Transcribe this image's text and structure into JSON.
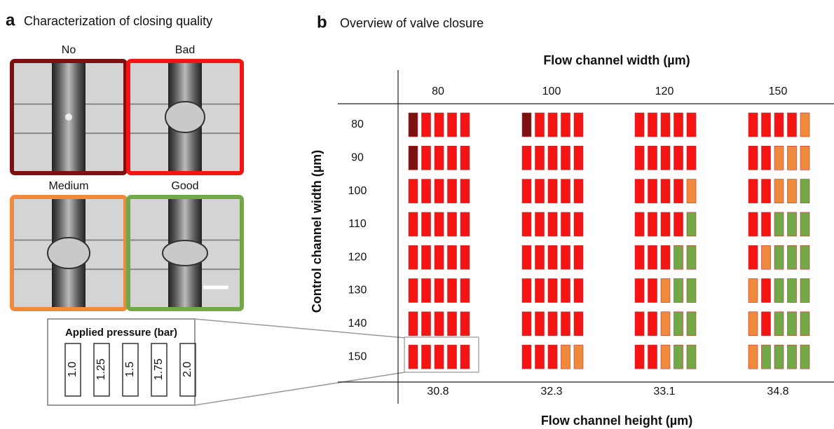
{
  "panel_a": {
    "label": "a",
    "title": "Characterization of closing quality",
    "qualities": [
      {
        "label": "No",
        "color": "#7d1111"
      },
      {
        "label": "Bad",
        "color": "#f41414"
      },
      {
        "label": "Medium",
        "color": "#ef8a3c"
      },
      {
        "label": "Good",
        "color": "#72a846"
      }
    ],
    "pressure_title": "Applied pressure (bar)",
    "pressures": [
      "1.0",
      "1.25",
      "1.5",
      "1.75",
      "2.0"
    ]
  },
  "panel_b": {
    "label": "b",
    "title": "Overview of valve closure",
    "x_title": "Flow channel width (µm)",
    "y_title": "Control channel width (µm)",
    "x2_title": "Flow channel height (µm)",
    "columns": [
      "80",
      "100",
      "120",
      "150"
    ],
    "rows": [
      "80",
      "90",
      "100",
      "110",
      "120",
      "130",
      "140",
      "150"
    ],
    "heights": [
      "30.8",
      "32.3",
      "33.1",
      "34.8"
    ],
    "cells": [
      [
        [
          "No",
          "Bad",
          "Bad",
          "Bad",
          "Bad"
        ],
        [
          "No",
          "Bad",
          "Bad",
          "Bad",
          "Bad"
        ],
        [
          "Bad",
          "Bad",
          "Bad",
          "Bad",
          "Bad"
        ],
        [
          "Bad",
          "Bad",
          "Bad",
          "Bad",
          "Medium"
        ]
      ],
      [
        [
          "No",
          "Bad",
          "Bad",
          "Bad",
          "Bad"
        ],
        [
          "Bad",
          "Bad",
          "Bad",
          "Bad",
          "Bad"
        ],
        [
          "Bad",
          "Bad",
          "Bad",
          "Bad",
          "Bad"
        ],
        [
          "Bad",
          "Bad",
          "Medium",
          "Medium",
          "Medium"
        ]
      ],
      [
        [
          "Bad",
          "Bad",
          "Bad",
          "Bad",
          "Bad"
        ],
        [
          "Bad",
          "Bad",
          "Bad",
          "Bad",
          "Bad"
        ],
        [
          "Bad",
          "Bad",
          "Bad",
          "Bad",
          "Medium"
        ],
        [
          "Bad",
          "Bad",
          "Medium",
          "Medium",
          "Good"
        ]
      ],
      [
        [
          "Bad",
          "Bad",
          "Bad",
          "Bad",
          "Bad"
        ],
        [
          "Bad",
          "Bad",
          "Bad",
          "Bad",
          "Bad"
        ],
        [
          "Bad",
          "Bad",
          "Bad",
          "Bad",
          "Good"
        ],
        [
          "Bad",
          "Bad",
          "Good",
          "Good",
          "Good"
        ]
      ],
      [
        [
          "Bad",
          "Bad",
          "Bad",
          "Bad",
          "Bad"
        ],
        [
          "Bad",
          "Bad",
          "Bad",
          "Bad",
          "Bad"
        ],
        [
          "Bad",
          "Bad",
          "Bad",
          "Good",
          "Good"
        ],
        [
          "Bad",
          "Medium",
          "Good",
          "Good",
          "Good"
        ]
      ],
      [
        [
          "Bad",
          "Bad",
          "Bad",
          "Bad",
          "Bad"
        ],
        [
          "Bad",
          "Bad",
          "Bad",
          "Bad",
          "Bad"
        ],
        [
          "Bad",
          "Bad",
          "Medium",
          "Good",
          "Good"
        ],
        [
          "Medium",
          "Bad",
          "Good",
          "Good",
          "Good"
        ]
      ],
      [
        [
          "Bad",
          "Bad",
          "Bad",
          "Bad",
          "Bad"
        ],
        [
          "Bad",
          "Bad",
          "Bad",
          "Bad",
          "Bad"
        ],
        [
          "Bad",
          "Bad",
          "Medium",
          "Good",
          "Good"
        ],
        [
          "Medium",
          "Bad",
          "Good",
          "Good",
          "Good"
        ]
      ],
      [
        [
          "Bad",
          "Bad",
          "Bad",
          "Bad",
          "Bad"
        ],
        [
          "Bad",
          "Bad",
          "Bad",
          "Medium",
          "Medium"
        ],
        [
          "Bad",
          "Bad",
          "Medium",
          "Good",
          "Good"
        ],
        [
          "Medium",
          "Good",
          "Good",
          "Good",
          "Good"
        ]
      ]
    ]
  }
}
